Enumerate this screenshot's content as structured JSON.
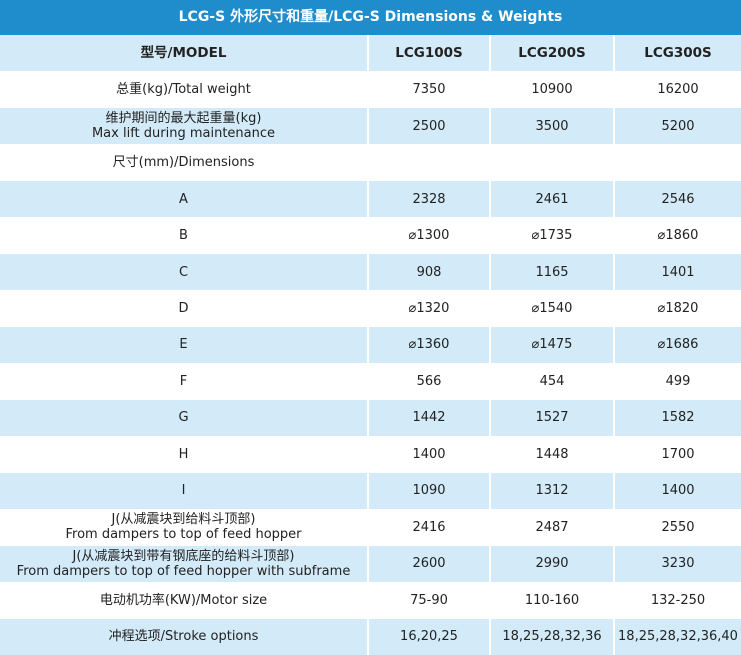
{
  "title": "LCG-S 外形尺寸和重量/LCG-S Dimensions & Weights",
  "table": {
    "header": [
      "型号/MODEL",
      "LCG100S",
      "LCG200S",
      "LCG300S"
    ],
    "rows": [
      [
        [
          "总重(kg)/Total weight"
        ],
        "7350",
        "10900",
        "16200"
      ],
      [
        [
          "维护期间的最大起重量(kg)",
          "Max lift during maintenance"
        ],
        "2500",
        "3500",
        "5200"
      ],
      [
        [
          "尺寸(mm)/Dimensions"
        ],
        "",
        "",
        ""
      ],
      [
        [
          "A"
        ],
        "2328",
        "2461",
        "2546"
      ],
      [
        [
          "B"
        ],
        "⌀1300",
        "⌀1735",
        "⌀1860"
      ],
      [
        [
          "C"
        ],
        "908",
        "1165",
        "1401"
      ],
      [
        [
          "D"
        ],
        "⌀1320",
        "⌀1540",
        "⌀1820"
      ],
      [
        [
          "E"
        ],
        "⌀1360",
        "⌀1475",
        "⌀1686"
      ],
      [
        [
          "F"
        ],
        "566",
        "454",
        "499"
      ],
      [
        [
          "G"
        ],
        "1442",
        "1527",
        "1582"
      ],
      [
        [
          "H"
        ],
        "1400",
        "1448",
        "1700"
      ],
      [
        [
          "I"
        ],
        "1090",
        "1312",
        "1400"
      ],
      [
        [
          "J(从减震块到给料斗顶部)",
          "From dampers to top of feed hopper"
        ],
        "2416",
        "2487",
        "2550"
      ],
      [
        [
          "J(从减震块到带有钢底座的给料斗顶部)",
          "From dampers to top of feed hopper with subframe"
        ],
        "2600",
        "2990",
        "3230"
      ],
      [
        [
          "电动机功率(KW)/Motor size"
        ],
        "75-90",
        "110-160",
        "132-250"
      ],
      [
        [
          "冲程选项/Stroke options"
        ],
        "16,20,25",
        "18,25,28,32,36",
        "18,25,28,32,36,40"
      ]
    ]
  }
}
